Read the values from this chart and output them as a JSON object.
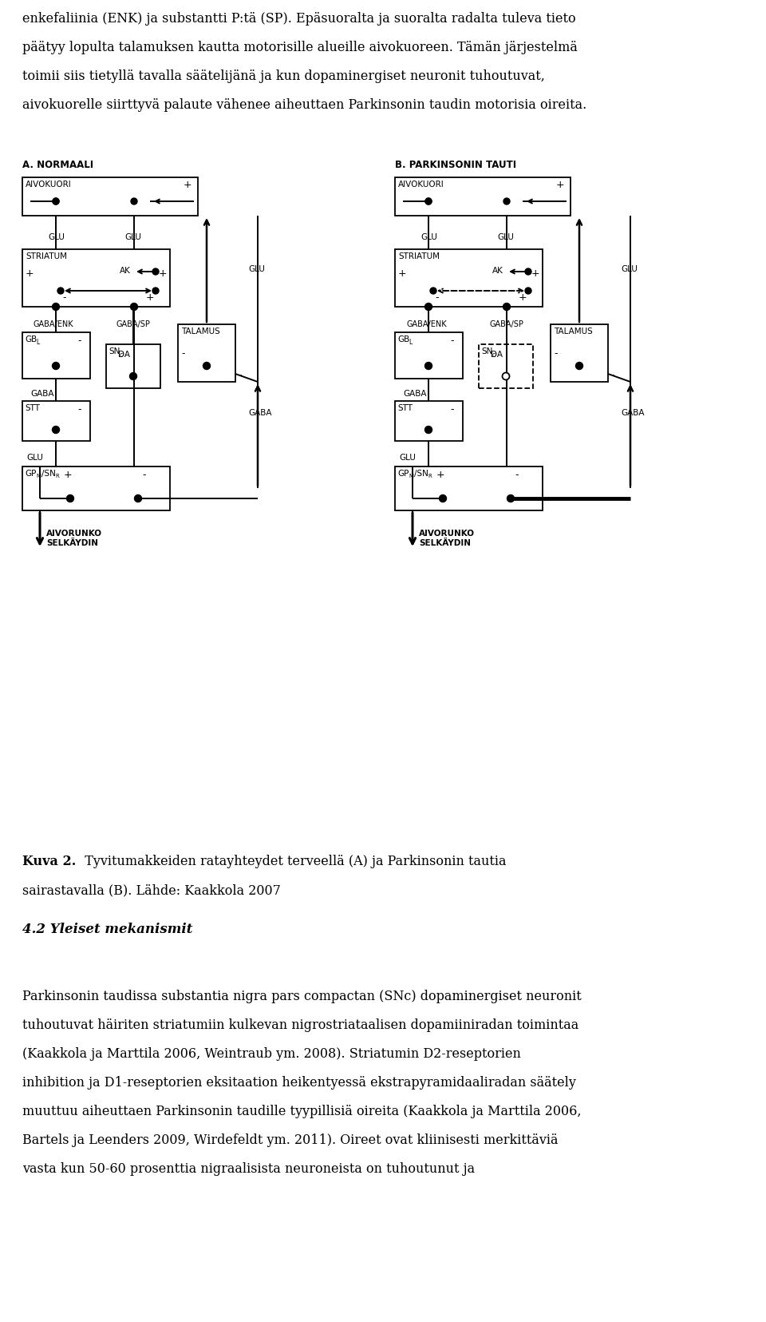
{
  "bg_color": "#ffffff",
  "label_A": "A. NORMAALI",
  "label_B": "B. PARKINSONIN TAUTI",
  "intro_lines": [
    "enkefaliinia (ENK) ja substantti P:tä (SP). Epäsuoralta ja suoralta radalta tuleva tieto",
    "päätyy lopulta talamuksen kautta motorisille alueille aivokuoreen. Tämän järjestelmä",
    "toimii siis tietyllä tavalla säätelijänä ja kun dopaminergiset neuronit tuhoutuvat,",
    "aivokuorelle siirttyvä palaute vähenee aiheuttaen Parkinsonin taudin motorisia oireita."
  ],
  "caption_bold": "Kuva 2.",
  "caption_rest": "  Tyvitumakkeiden ratayhteydet terveellä (A) ja Parkinsonin tautia",
  "caption_line2": "sairastavalla (B). Lähde: Kaakkola 2007",
  "section_heading": "4.2 Yleiset mekanismit",
  "body_lines": [
    "",
    "Parkinsonin taudissa substantia nigra pars compactan (SNc) dopaminergiset neuronit",
    "tuhoutuvat häiriten striatumiin kulkevan nigrostriataalisen dopamiiniradan toimintaa",
    "(Kaakkola ja Marttila 2006, Weintraub ym. 2008). Striatumin D2-reseptorien",
    "inhibition ja D1-reseptorien eksitaation heikentyessä ekstrapyramidaaliradan säätely",
    "muuttuu aiheuttaen Parkinsonin taudille tyypillisiä oireita (Kaakkola ja Marttila 2006,",
    "Bartels ja Leenders 2009, Wirdefeldt ym. 2011). Oireet ovat kliinisesti merkittäviä",
    "vasta kun 50-60 prosenttia nigraalisista neuroneista on tuhoutunut ja"
  ]
}
